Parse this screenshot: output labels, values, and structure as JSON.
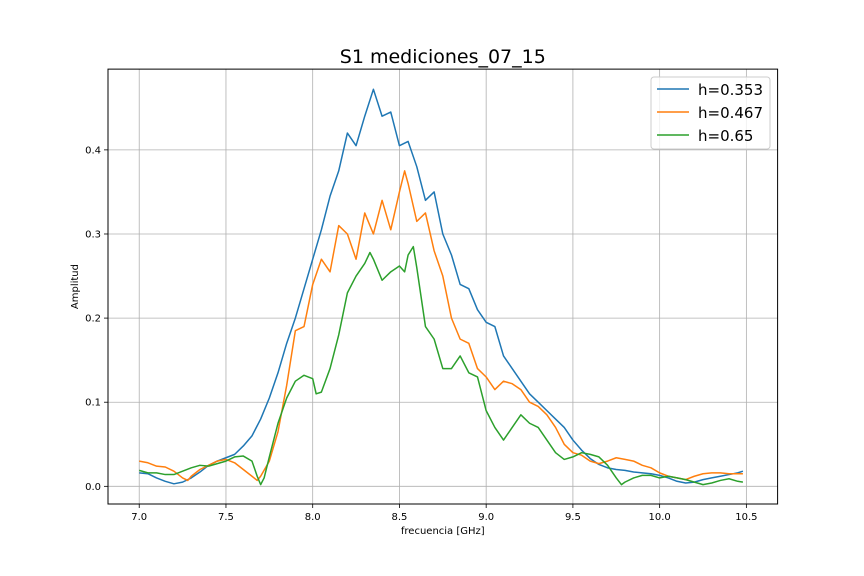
{
  "chart_data": {
    "type": "line",
    "title": "S1 mediciones_07_15",
    "xlabel": "frecuencia [GHz]",
    "ylabel": "Amplitud",
    "xlim": [
      6.82,
      10.68
    ],
    "ylim": [
      -0.021,
      0.496
    ],
    "xticks": [
      "7.0",
      "7.5",
      "8.0",
      "8.5",
      "9.0",
      "9.5",
      "10.0",
      "10.5"
    ],
    "yticks": [
      "0.0",
      "0.1",
      "0.2",
      "0.3",
      "0.4"
    ],
    "grid": true,
    "legend_position": "top-right",
    "series": [
      {
        "name": "h=0.353",
        "color": "#1f77b4",
        "points": [
          [
            7.0,
            0.016
          ],
          [
            7.05,
            0.015
          ],
          [
            7.1,
            0.01
          ],
          [
            7.15,
            0.006
          ],
          [
            7.2,
            0.003
          ],
          [
            7.25,
            0.005
          ],
          [
            7.3,
            0.01
          ],
          [
            7.35,
            0.017
          ],
          [
            7.4,
            0.025
          ],
          [
            7.45,
            0.03
          ],
          [
            7.5,
            0.034
          ],
          [
            7.55,
            0.038
          ],
          [
            7.6,
            0.048
          ],
          [
            7.65,
            0.06
          ],
          [
            7.7,
            0.08
          ],
          [
            7.75,
            0.105
          ],
          [
            7.8,
            0.135
          ],
          [
            7.85,
            0.17
          ],
          [
            7.9,
            0.2
          ],
          [
            7.95,
            0.235
          ],
          [
            8.0,
            0.27
          ],
          [
            8.05,
            0.305
          ],
          [
            8.1,
            0.345
          ],
          [
            8.15,
            0.375
          ],
          [
            8.2,
            0.42
          ],
          [
            8.25,
            0.405
          ],
          [
            8.3,
            0.44
          ],
          [
            8.35,
            0.472
          ],
          [
            8.4,
            0.44
          ],
          [
            8.45,
            0.445
          ],
          [
            8.5,
            0.405
          ],
          [
            8.55,
            0.41
          ],
          [
            8.6,
            0.38
          ],
          [
            8.65,
            0.34
          ],
          [
            8.7,
            0.35
          ],
          [
            8.75,
            0.3
          ],
          [
            8.8,
            0.275
          ],
          [
            8.85,
            0.24
          ],
          [
            8.9,
            0.235
          ],
          [
            8.95,
            0.21
          ],
          [
            9.0,
            0.195
          ],
          [
            9.05,
            0.19
          ],
          [
            9.1,
            0.155
          ],
          [
            9.15,
            0.14
          ],
          [
            9.2,
            0.125
          ],
          [
            9.25,
            0.11
          ],
          [
            9.3,
            0.1
          ],
          [
            9.35,
            0.09
          ],
          [
            9.4,
            0.08
          ],
          [
            9.45,
            0.07
          ],
          [
            9.5,
            0.055
          ],
          [
            9.55,
            0.043
          ],
          [
            9.6,
            0.033
          ],
          [
            9.65,
            0.026
          ],
          [
            9.7,
            0.022
          ],
          [
            9.75,
            0.02
          ],
          [
            9.8,
            0.019
          ],
          [
            9.85,
            0.017
          ],
          [
            9.9,
            0.016
          ],
          [
            9.95,
            0.015
          ],
          [
            10.0,
            0.013
          ],
          [
            10.05,
            0.01
          ],
          [
            10.1,
            0.006
          ],
          [
            10.15,
            0.004
          ],
          [
            10.2,
            0.005
          ],
          [
            10.25,
            0.008
          ],
          [
            10.3,
            0.01
          ],
          [
            10.35,
            0.012
          ],
          [
            10.4,
            0.014
          ],
          [
            10.45,
            0.016
          ],
          [
            10.48,
            0.018
          ]
        ]
      },
      {
        "name": "h=0.467",
        "color": "#ff7f0e",
        "points": [
          [
            7.0,
            0.03
          ],
          [
            7.05,
            0.028
          ],
          [
            7.1,
            0.024
          ],
          [
            7.15,
            0.023
          ],
          [
            7.2,
            0.018
          ],
          [
            7.25,
            0.01
          ],
          [
            7.28,
            0.007
          ],
          [
            7.3,
            0.012
          ],
          [
            7.35,
            0.02
          ],
          [
            7.4,
            0.025
          ],
          [
            7.45,
            0.03
          ],
          [
            7.5,
            0.032
          ],
          [
            7.55,
            0.028
          ],
          [
            7.6,
            0.02
          ],
          [
            7.65,
            0.012
          ],
          [
            7.68,
            0.007
          ],
          [
            7.7,
            0.012
          ],
          [
            7.75,
            0.03
          ],
          [
            7.8,
            0.065
          ],
          [
            7.85,
            0.12
          ],
          [
            7.9,
            0.185
          ],
          [
            7.95,
            0.19
          ],
          [
            8.0,
            0.24
          ],
          [
            8.05,
            0.27
          ],
          [
            8.1,
            0.255
          ],
          [
            8.15,
            0.31
          ],
          [
            8.2,
            0.3
          ],
          [
            8.25,
            0.27
          ],
          [
            8.3,
            0.325
          ],
          [
            8.35,
            0.3
          ],
          [
            8.4,
            0.34
          ],
          [
            8.45,
            0.305
          ],
          [
            8.5,
            0.35
          ],
          [
            8.53,
            0.375
          ],
          [
            8.55,
            0.36
          ],
          [
            8.6,
            0.315
          ],
          [
            8.65,
            0.325
          ],
          [
            8.7,
            0.28
          ],
          [
            8.75,
            0.25
          ],
          [
            8.8,
            0.2
          ],
          [
            8.85,
            0.175
          ],
          [
            8.9,
            0.17
          ],
          [
            8.95,
            0.14
          ],
          [
            9.0,
            0.13
          ],
          [
            9.05,
            0.115
          ],
          [
            9.1,
            0.125
          ],
          [
            9.15,
            0.122
          ],
          [
            9.2,
            0.115
          ],
          [
            9.25,
            0.1
          ],
          [
            9.3,
            0.095
          ],
          [
            9.35,
            0.085
          ],
          [
            9.4,
            0.07
          ],
          [
            9.45,
            0.05
          ],
          [
            9.5,
            0.04
          ],
          [
            9.55,
            0.037
          ],
          [
            9.6,
            0.03
          ],
          [
            9.65,
            0.027
          ],
          [
            9.7,
            0.03
          ],
          [
            9.75,
            0.034
          ],
          [
            9.8,
            0.032
          ],
          [
            9.85,
            0.03
          ],
          [
            9.9,
            0.025
          ],
          [
            9.95,
            0.022
          ],
          [
            10.0,
            0.016
          ],
          [
            10.05,
            0.012
          ],
          [
            10.1,
            0.01
          ],
          [
            10.15,
            0.008
          ],
          [
            10.2,
            0.012
          ],
          [
            10.25,
            0.015
          ],
          [
            10.3,
            0.016
          ],
          [
            10.35,
            0.016
          ],
          [
            10.4,
            0.015
          ],
          [
            10.45,
            0.015
          ],
          [
            10.48,
            0.015
          ]
        ]
      },
      {
        "name": "h=0.65",
        "color": "#2ca02c",
        "points": [
          [
            7.0,
            0.019
          ],
          [
            7.05,
            0.016
          ],
          [
            7.1,
            0.016
          ],
          [
            7.15,
            0.014
          ],
          [
            7.2,
            0.014
          ],
          [
            7.25,
            0.018
          ],
          [
            7.3,
            0.022
          ],
          [
            7.35,
            0.025
          ],
          [
            7.4,
            0.024
          ],
          [
            7.45,
            0.027
          ],
          [
            7.5,
            0.03
          ],
          [
            7.55,
            0.035
          ],
          [
            7.6,
            0.036
          ],
          [
            7.65,
            0.03
          ],
          [
            7.68,
            0.012
          ],
          [
            7.7,
            0.002
          ],
          [
            7.72,
            0.01
          ],
          [
            7.75,
            0.035
          ],
          [
            7.8,
            0.075
          ],
          [
            7.85,
            0.105
          ],
          [
            7.9,
            0.125
          ],
          [
            7.95,
            0.132
          ],
          [
            8.0,
            0.128
          ],
          [
            8.02,
            0.11
          ],
          [
            8.05,
            0.112
          ],
          [
            8.1,
            0.14
          ],
          [
            8.15,
            0.18
          ],
          [
            8.2,
            0.23
          ],
          [
            8.25,
            0.25
          ],
          [
            8.3,
            0.265
          ],
          [
            8.33,
            0.278
          ],
          [
            8.35,
            0.27
          ],
          [
            8.4,
            0.245
          ],
          [
            8.45,
            0.255
          ],
          [
            8.5,
            0.262
          ],
          [
            8.53,
            0.255
          ],
          [
            8.55,
            0.275
          ],
          [
            8.58,
            0.285
          ],
          [
            8.6,
            0.26
          ],
          [
            8.65,
            0.19
          ],
          [
            8.7,
            0.175
          ],
          [
            8.75,
            0.14
          ],
          [
            8.8,
            0.14
          ],
          [
            8.85,
            0.155
          ],
          [
            8.9,
            0.135
          ],
          [
            8.95,
            0.13
          ],
          [
            9.0,
            0.09
          ],
          [
            9.05,
            0.07
          ],
          [
            9.1,
            0.055
          ],
          [
            9.15,
            0.07
          ],
          [
            9.2,
            0.085
          ],
          [
            9.25,
            0.075
          ],
          [
            9.3,
            0.07
          ],
          [
            9.35,
            0.055
          ],
          [
            9.4,
            0.04
          ],
          [
            9.45,
            0.032
          ],
          [
            9.5,
            0.035
          ],
          [
            9.55,
            0.04
          ],
          [
            9.6,
            0.038
          ],
          [
            9.65,
            0.035
          ],
          [
            9.7,
            0.025
          ],
          [
            9.75,
            0.01
          ],
          [
            9.78,
            0.002
          ],
          [
            9.8,
            0.005
          ],
          [
            9.85,
            0.01
          ],
          [
            9.9,
            0.013
          ],
          [
            9.95,
            0.013
          ],
          [
            10.0,
            0.01
          ],
          [
            10.05,
            0.012
          ],
          [
            10.1,
            0.01
          ],
          [
            10.15,
            0.008
          ],
          [
            10.2,
            0.005
          ],
          [
            10.25,
            0.002
          ],
          [
            10.3,
            0.004
          ],
          [
            10.35,
            0.007
          ],
          [
            10.4,
            0.009
          ],
          [
            10.45,
            0.006
          ],
          [
            10.48,
            0.005
          ]
        ]
      }
    ]
  }
}
